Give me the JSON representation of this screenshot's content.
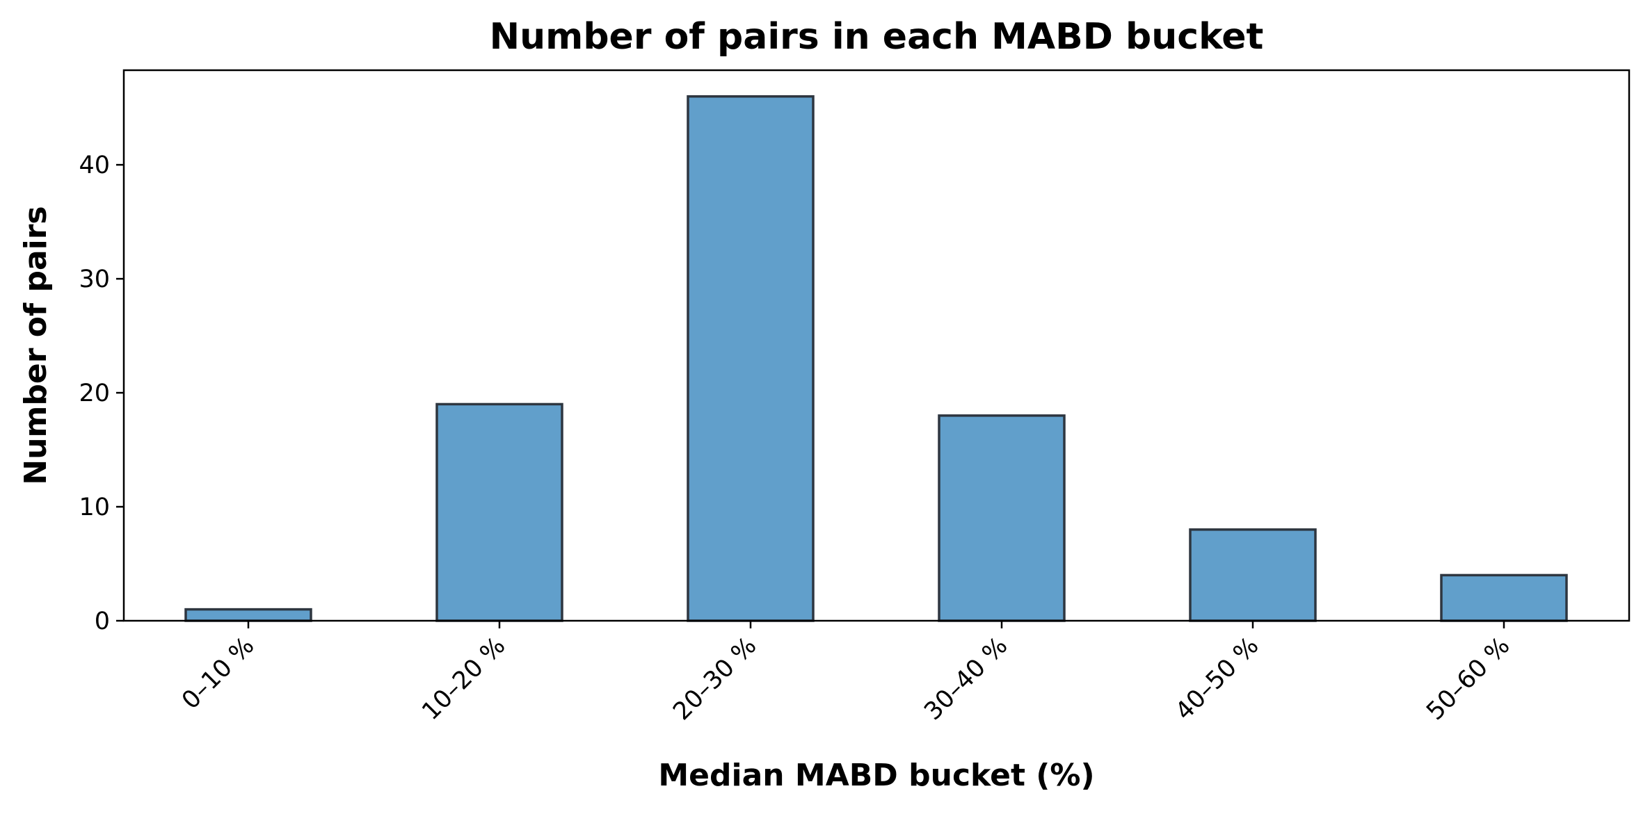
{
  "chart_data": {
    "type": "bar",
    "title": "Number of pairs in each MABD bucket",
    "xlabel": "Median MABD bucket (%)",
    "ylabel": "Number of pairs",
    "categories": [
      "0–10 %",
      "10–20 %",
      "20–30 %",
      "30–40 %",
      "40–50 %",
      "50–60 %"
    ],
    "values": [
      1,
      19,
      46,
      18,
      8,
      4
    ],
    "yticks": [
      0,
      10,
      20,
      30,
      40
    ],
    "ylim": [
      0,
      48.3
    ],
    "grid": false,
    "legend": "none",
    "bar_color": "#619fcb",
    "edge_color": "#2e3640"
  }
}
